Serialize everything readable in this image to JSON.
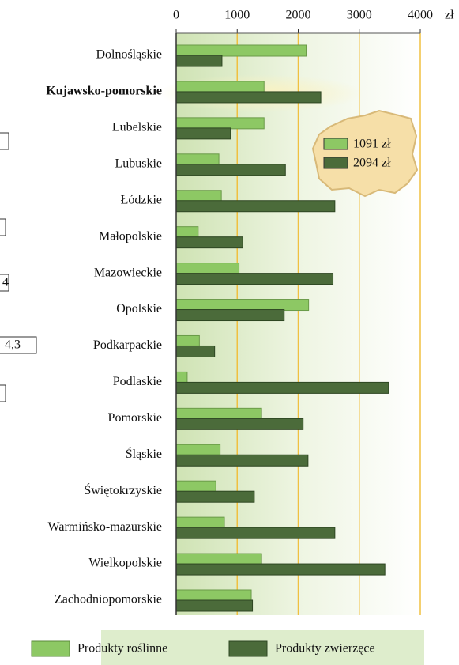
{
  "chart_data": {
    "type": "barh",
    "categories": [
      "Dolnośląskie",
      "Kujawsko-pomorskie",
      "Lubelskie",
      "Lubuskie",
      "Łódzkie",
      "Małopolskie",
      "Mazowieckie",
      "Opolskie",
      "Podkarpackie",
      "Podlaskie",
      "Pomorskie",
      "Śląskie",
      "Świętokrzyskie",
      "Warmińsko-mazurskie",
      "Wielkopolskie",
      "Zachodniopomorskie"
    ],
    "series": [
      {
        "name": "Produkty roślinne",
        "color": "#8dc864",
        "values": [
          2130,
          1440,
          1440,
          700,
          740,
          360,
          1030,
          2170,
          380,
          180,
          1400,
          720,
          650,
          790,
          1400,
          1230
        ]
      },
      {
        "name": "Produkty zwierzęce",
        "color": "#4b6b3a",
        "values": [
          750,
          2370,
          890,
          1790,
          2600,
          1090,
          2570,
          1770,
          630,
          3480,
          2080,
          2160,
          1280,
          2600,
          3420,
          1250
        ]
      }
    ],
    "xlim": [
      0,
      4000
    ],
    "xticks": [
      0,
      1000,
      2000,
      3000,
      4000
    ],
    "x_unit": "zł",
    "grid": true,
    "inset_legend": [
      "1091 zł",
      "2094 zł"
    ],
    "fragments": [
      "4",
      "4,3"
    ]
  }
}
